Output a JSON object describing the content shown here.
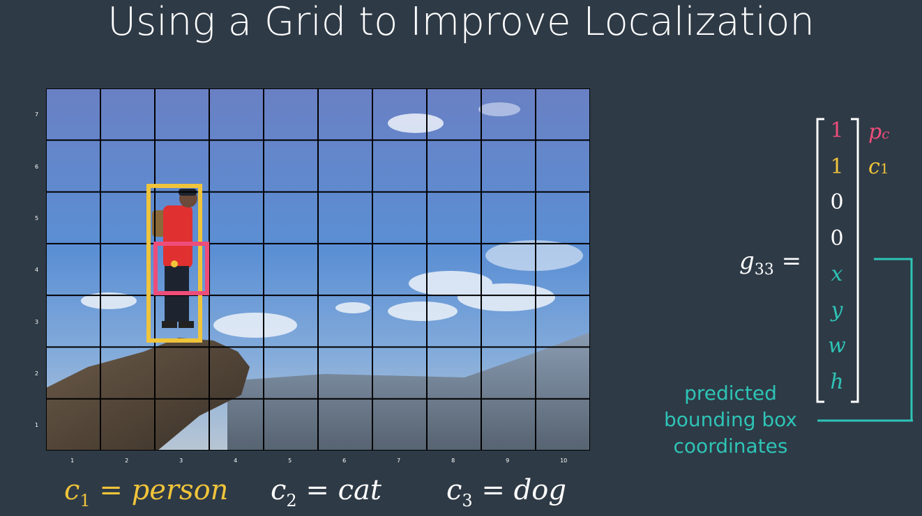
{
  "title": "Using a Grid to Improve Localization",
  "colors": {
    "background": "#2e3a46",
    "pc": "#ee4d7a",
    "class": "#f0c43a",
    "coords": "#2ec4b6",
    "text": "#ffffff"
  },
  "grid": {
    "columns": 10,
    "rows": 7,
    "x_labels": [
      "1",
      "2",
      "3",
      "4",
      "5",
      "6",
      "7",
      "8",
      "9",
      "10"
    ],
    "y_labels": [
      "7",
      "6",
      "5",
      "4",
      "3",
      "2",
      "1"
    ]
  },
  "legend": {
    "c1_lhs": "c",
    "c1_sub": "1",
    "c1_rhs": "= person",
    "c2_lhs": "c",
    "c2_sub": "2",
    "c2_rhs": "= cat",
    "c3_lhs": "c",
    "c3_sub": "3",
    "c3_rhs": "= dog"
  },
  "vector": {
    "name": "g",
    "name_sub": "33",
    "equals": "=",
    "values": [
      "1",
      "1",
      "0",
      "0",
      "x",
      "y",
      "w",
      "h"
    ],
    "labels": {
      "pc_main": "p",
      "pc_sub": "c",
      "c1_main": "c",
      "c1_sub": "1"
    }
  },
  "caption": {
    "line1": "predicted",
    "line2": "bounding box",
    "line3": "coordinates"
  }
}
